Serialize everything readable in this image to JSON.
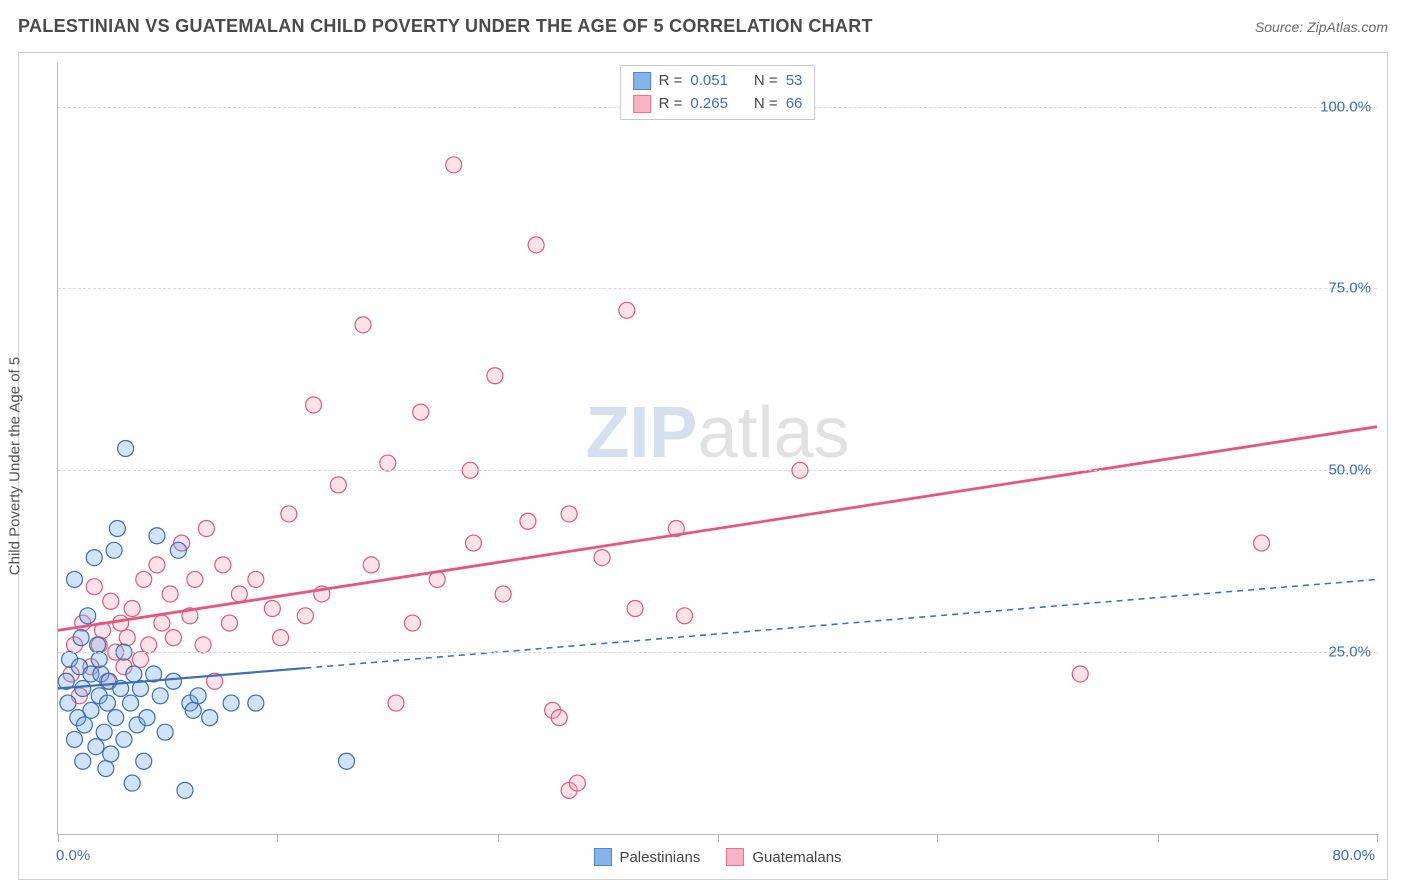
{
  "title": "PALESTINIAN VS GUATEMALAN CHILD POVERTY UNDER THE AGE OF 5 CORRELATION CHART",
  "source": "Source: ZipAtlas.com",
  "y_axis_label": "Child Poverty Under the Age of 5",
  "watermark_part1": "ZIP",
  "watermark_part2": "atlas",
  "chart": {
    "type": "scatter",
    "xlim": [
      0,
      80
    ],
    "ylim": [
      0,
      106
    ],
    "x_ticks": [
      0,
      13.3,
      26.7,
      40,
      53.3,
      66.7,
      80
    ],
    "x_tick_labels": {
      "0": "0.0%",
      "80": "80.0%"
    },
    "y_ticks": [
      25,
      50,
      75,
      100
    ],
    "y_tick_labels": {
      "25": "25.0%",
      "50": "50.0%",
      "75": "75.0%",
      "100": "100.0%"
    },
    "background_color": "#ffffff",
    "grid_color": "#d8d8d8",
    "axis_color": "#b8b8b8",
    "marker_radius": 8,
    "marker_stroke_width": 1.2,
    "marker_fill_opacity": 0.32,
    "label_color": "#3b6fb6",
    "label_fontsize": 15,
    "title_color": "#4a4a4a",
    "title_fontsize": 18
  },
  "series": {
    "blue": {
      "label": "Palestinians",
      "fill": "#6ea7e8",
      "stroke": "#3b6fb6",
      "R_label": "R =",
      "R": "0.051",
      "N_label": "N =",
      "N": "53",
      "trend": {
        "x1": 0,
        "y1": 20,
        "x2": 80,
        "y2": 35,
        "solid_until_x": 15
      },
      "line_width": 2.2,
      "dash": "6,5",
      "points": [
        [
          0.5,
          21
        ],
        [
          0.7,
          24
        ],
        [
          0.6,
          18
        ],
        [
          1.0,
          35
        ],
        [
          1.2,
          16
        ],
        [
          1.0,
          13
        ],
        [
          1.4,
          27
        ],
        [
          1.5,
          20
        ],
        [
          1.3,
          23
        ],
        [
          1.6,
          15
        ],
        [
          1.8,
          30
        ],
        [
          1.5,
          10
        ],
        [
          2.0,
          22
        ],
        [
          2.2,
          38
        ],
        [
          2.0,
          17
        ],
        [
          2.3,
          12
        ],
        [
          2.4,
          26
        ],
        [
          2.5,
          19
        ],
        [
          2.6,
          22
        ],
        [
          2.5,
          24
        ],
        [
          2.8,
          14
        ],
        [
          2.9,
          9
        ],
        [
          3.0,
          18
        ],
        [
          3.2,
          11
        ],
        [
          3.1,
          21
        ],
        [
          3.4,
          39
        ],
        [
          3.5,
          16
        ],
        [
          3.6,
          42
        ],
        [
          3.8,
          20
        ],
        [
          4.0,
          13
        ],
        [
          4.0,
          25
        ],
        [
          4.1,
          53
        ],
        [
          4.4,
          18
        ],
        [
          4.5,
          7
        ],
        [
          4.6,
          22
        ],
        [
          4.8,
          15
        ],
        [
          5.0,
          20
        ],
        [
          5.2,
          10
        ],
        [
          5.4,
          16
        ],
        [
          5.8,
          22
        ],
        [
          6.0,
          41
        ],
        [
          6.2,
          19
        ],
        [
          6.5,
          14
        ],
        [
          7.0,
          21
        ],
        [
          7.3,
          39
        ],
        [
          7.7,
          6
        ],
        [
          8.0,
          18
        ],
        [
          8.2,
          17
        ],
        [
          8.5,
          19
        ],
        [
          9.2,
          16
        ],
        [
          10.5,
          18
        ],
        [
          12.0,
          18
        ],
        [
          17.5,
          10
        ]
      ]
    },
    "pink": {
      "label": "Guatemalans",
      "fill": "#f5a8bd",
      "stroke": "#e3587e",
      "R_label": "R =",
      "R": "0.265",
      "N_label": "N =",
      "N": "66",
      "trend": {
        "x1": 0,
        "y1": 28,
        "x2": 80,
        "y2": 56,
        "solid_until_x": 80
      },
      "line_width": 2.8,
      "points": [
        [
          0.8,
          22
        ],
        [
          1.0,
          26
        ],
        [
          1.3,
          19
        ],
        [
          1.5,
          29
        ],
        [
          2.0,
          23
        ],
        [
          2.2,
          34
        ],
        [
          2.5,
          26
        ],
        [
          2.7,
          28
        ],
        [
          3.0,
          21
        ],
        [
          3.2,
          32
        ],
        [
          3.5,
          25
        ],
        [
          3.8,
          29
        ],
        [
          4.0,
          23
        ],
        [
          4.2,
          27
        ],
        [
          4.5,
          31
        ],
        [
          5.0,
          24
        ],
        [
          5.2,
          35
        ],
        [
          5.5,
          26
        ],
        [
          6.0,
          37
        ],
        [
          6.3,
          29
        ],
        [
          6.8,
          33
        ],
        [
          7.0,
          27
        ],
        [
          7.5,
          40
        ],
        [
          8.0,
          30
        ],
        [
          8.3,
          35
        ],
        [
          8.8,
          26
        ],
        [
          9.0,
          42
        ],
        [
          9.5,
          21
        ],
        [
          10.0,
          37
        ],
        [
          10.4,
          29
        ],
        [
          11.0,
          33
        ],
        [
          12.0,
          35
        ],
        [
          13.0,
          31
        ],
        [
          13.5,
          27
        ],
        [
          14.0,
          44
        ],
        [
          15.0,
          30
        ],
        [
          15.5,
          59
        ],
        [
          16.0,
          33
        ],
        [
          17.0,
          48
        ],
        [
          18.5,
          70
        ],
        [
          19.0,
          37
        ],
        [
          20.0,
          51
        ],
        [
          20.5,
          18
        ],
        [
          21.5,
          29
        ],
        [
          22.0,
          58
        ],
        [
          23.0,
          35
        ],
        [
          24.0,
          92
        ],
        [
          25.0,
          50
        ],
        [
          25.2,
          40
        ],
        [
          26.5,
          63
        ],
        [
          27.0,
          33
        ],
        [
          28.5,
          43
        ],
        [
          29.0,
          81
        ],
        [
          30.0,
          17
        ],
        [
          30.4,
          16
        ],
        [
          31.0,
          44
        ],
        [
          31.0,
          6
        ],
        [
          31.5,
          7
        ],
        [
          33.0,
          38
        ],
        [
          34.5,
          72
        ],
        [
          35.0,
          31
        ],
        [
          37.5,
          42
        ],
        [
          38.0,
          30
        ],
        [
          45.0,
          50
        ],
        [
          62.0,
          22
        ],
        [
          73.0,
          40
        ]
      ]
    }
  }
}
